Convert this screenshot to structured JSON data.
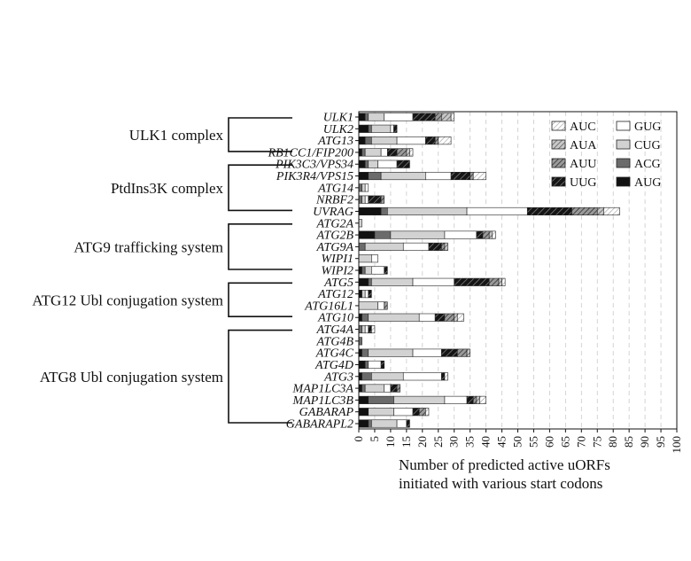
{
  "chart_data": {
    "type": "bar",
    "orientation": "horizontal",
    "stacked": true,
    "xlabel_lines": [
      "Number of predicted active uORFs",
      "initiated with various start codons"
    ],
    "xlim": [
      0,
      100
    ],
    "xticks": [
      0,
      5,
      10,
      15,
      20,
      25,
      30,
      35,
      40,
      45,
      50,
      55,
      60,
      65,
      70,
      75,
      80,
      85,
      90,
      95,
      100
    ],
    "grid": "vertical dashed",
    "legend_position": "top-right",
    "stack_order": [
      "AUG",
      "ACG",
      "CUG",
      "GUG",
      "UUG",
      "AUU",
      "AUA",
      "AUC"
    ],
    "legend": [
      {
        "codon": "AUC",
        "color": "#ffffff",
        "pattern": "diag-light"
      },
      {
        "codon": "GUG",
        "color": "#ffffff",
        "pattern": "none"
      },
      {
        "codon": "AUA",
        "color": "#9a9a9a",
        "pattern": "diag-gray"
      },
      {
        "codon": "CUG",
        "color": "#d2d2d2",
        "pattern": "none"
      },
      {
        "codon": "AUU",
        "color": "#6e6e6e",
        "pattern": "diag-dark"
      },
      {
        "codon": "ACG",
        "color": "#6b6b6b",
        "pattern": "none"
      },
      {
        "codon": "UUG",
        "color": "#1c1c1c",
        "pattern": "diag-black"
      },
      {
        "codon": "AUG",
        "color": "#111111",
        "pattern": "none"
      }
    ],
    "categories": [
      "ULK1",
      "ULK2",
      "ATG13",
      "RB1CC1/FIP200",
      "PIK3C3/VPS34",
      "PIK3R4/VPS15",
      "ATG14",
      "NRBF2",
      "UVRAG",
      "ATG2A",
      "ATG2B",
      "ATG9A",
      "WIPI1",
      "WIPI2",
      "ATG5",
      "ATG12",
      "ATG16L1",
      "ATG10",
      "ATG4A",
      "ATG4B",
      "ATG4C",
      "ATG4D",
      "ATG3",
      "MAP1LC3A",
      "MAP1LC3B",
      "GABARAP",
      "GABARAPL2"
    ],
    "series": [
      {
        "name": "AUG",
        "values": [
          2,
          3,
          2,
          1,
          2,
          3,
          0,
          0,
          7,
          0,
          5,
          0,
          0,
          1,
          3,
          1,
          0,
          1,
          0,
          0,
          1,
          2,
          1,
          1,
          3,
          3,
          3
        ]
      },
      {
        "name": "ACG",
        "values": [
          1,
          1,
          2,
          1,
          1,
          4,
          1,
          1,
          2,
          0,
          5,
          2,
          0,
          1,
          1,
          0,
          0,
          2,
          1,
          1,
          2,
          1,
          3,
          1,
          8,
          0,
          1
        ]
      },
      {
        "name": "CUG",
        "values": [
          5,
          6,
          8,
          5,
          3,
          14,
          1,
          1,
          25,
          1,
          17,
          12,
          4,
          2,
          13,
          1,
          6,
          16,
          1,
          0,
          14,
          0,
          10,
          6,
          16,
          8,
          8
        ]
      },
      {
        "name": "GUG",
        "values": [
          9,
          1,
          9,
          2,
          6,
          8,
          1,
          1,
          19,
          0,
          10,
          8,
          2,
          4,
          13,
          1,
          2,
          5,
          1,
          0,
          9,
          4,
          12,
          2,
          7,
          6,
          3
        ]
      },
      {
        "name": "UUG",
        "values": [
          7,
          1,
          3,
          3,
          4,
          6,
          0,
          4,
          14,
          0,
          2,
          4,
          0,
          1,
          11,
          1,
          0,
          3,
          1,
          0,
          5,
          1,
          1,
          2,
          2,
          2,
          1
        ]
      },
      {
        "name": "AUU",
        "values": [
          2,
          0,
          1,
          3,
          0,
          1,
          0,
          1,
          8,
          0,
          2,
          1,
          0,
          0,
          3,
          0,
          1,
          3,
          0,
          0,
          3,
          0,
          0,
          1,
          1,
          2,
          0
        ]
      },
      {
        "name": "AUA",
        "values": [
          3,
          0,
          0,
          1,
          0,
          0,
          0,
          0,
          2,
          0,
          1,
          1,
          0,
          0,
          1,
          0,
          0,
          1,
          0,
          0,
          1,
          0,
          0,
          0,
          1,
          0,
          0
        ]
      },
      {
        "name": "AUC",
        "values": [
          1,
          0,
          4,
          1,
          0,
          4,
          0,
          0,
          5,
          0,
          1,
          0,
          0,
          0,
          1,
          0,
          0,
          2,
          1,
          0,
          0,
          0,
          1,
          0,
          2,
          1,
          0
        ]
      }
    ],
    "groups": [
      {
        "label": "ULK1 complex",
        "from": 0,
        "to": 3
      },
      {
        "label": "PtdIns3K complex",
        "from": 4,
        "to": 8
      },
      {
        "label": "ATG9 trafficking system",
        "from": 9,
        "to": 13
      },
      {
        "label": "ATG12 Ubl conjugation system",
        "from": 14,
        "to": 17
      },
      {
        "label": "ATG8 Ubl conjugation system",
        "from": 18,
        "to": 26
      }
    ]
  }
}
